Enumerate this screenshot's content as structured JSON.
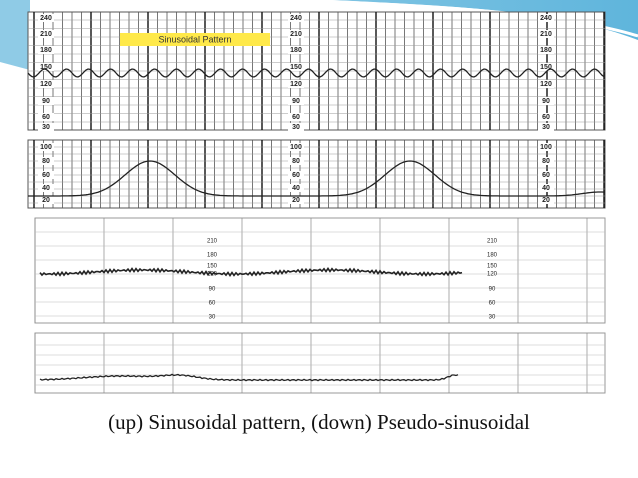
{
  "caption": "(up) Sinusoidal pattern, (down) Pseudo-sinusoidal",
  "top_trace": {
    "label": "Sinusoidal Pattern",
    "fhr_scale": [
      "240",
      "210",
      "180",
      "150",
      "120",
      "90",
      "60",
      "30"
    ],
    "uc_scale": [
      "100",
      "80",
      "60",
      "40",
      "20"
    ]
  },
  "bottom_trace": {
    "fhr_scale": [
      "210",
      "180",
      "150",
      "120",
      "90",
      "60",
      "30"
    ]
  }
}
